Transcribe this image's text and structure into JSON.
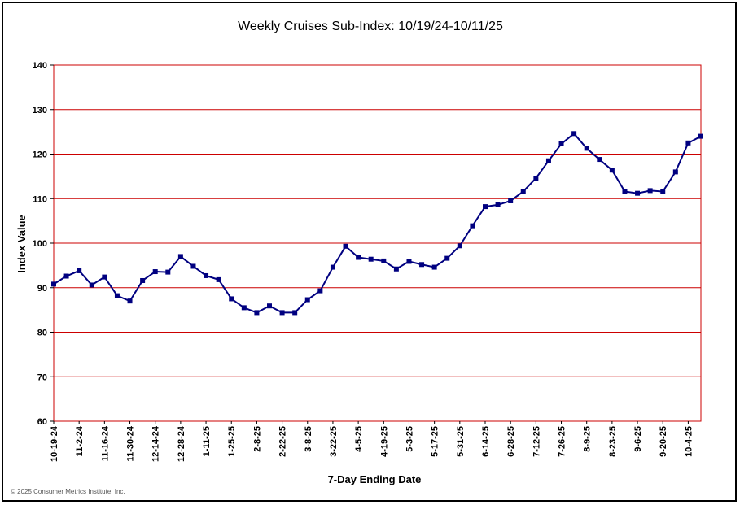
{
  "chart_data": {
    "type": "line",
    "title": "Weekly Cruises Sub-Index: 10/19/24-10/11/25",
    "xlabel": "7-Day Ending Date",
    "ylabel": "Index Value",
    "ylim": [
      60,
      140
    ],
    "yticks": [
      "140",
      "130",
      "120",
      "110",
      "100",
      "90",
      "80",
      "70",
      "60"
    ],
    "ytick_values": [
      140,
      130,
      120,
      110,
      100,
      90,
      80,
      70,
      60
    ],
    "grid": true,
    "legend": "none",
    "xtick_labels": [
      "10-19-24",
      "11-2-24",
      "11-16-24",
      "11-30-24",
      "12-14-24",
      "12-28-24",
      "1-11-25",
      "1-25-25",
      "2-8-25",
      "2-22-25",
      "3-8-25",
      "3-22-25",
      "4-5-25",
      "4-19-25",
      "5-3-25",
      "5-17-25",
      "5-31-25",
      "6-14-25",
      "6-28-25",
      "7-12-25",
      "7-26-25",
      "8-9-25",
      "8-23-25",
      "9-6-25",
      "9-20-25",
      "10-4-25"
    ],
    "x": [
      "10-19-24",
      "10-26-24",
      "11-2-24",
      "11-9-24",
      "11-16-24",
      "11-23-24",
      "11-30-24",
      "12-7-24",
      "12-14-24",
      "12-21-24",
      "12-28-24",
      "1-4-25",
      "1-11-25",
      "1-18-25",
      "1-25-25",
      "2-1-25",
      "2-8-25",
      "2-15-25",
      "2-22-25",
      "3-1-25",
      "3-8-25",
      "3-15-25",
      "3-22-25",
      "3-29-25",
      "4-5-25",
      "4-12-25",
      "4-19-25",
      "4-26-25",
      "5-3-25",
      "5-10-25",
      "5-17-25",
      "5-24-25",
      "5-31-25",
      "6-7-25",
      "6-14-25",
      "6-21-25",
      "6-28-25",
      "7-5-25",
      "7-12-25",
      "7-19-25",
      "7-26-25",
      "8-2-25",
      "8-9-25",
      "8-16-25",
      "8-23-25",
      "8-30-25",
      "9-6-25",
      "9-13-25",
      "9-20-25",
      "9-27-25",
      "10-4-25",
      "10-11-25"
    ],
    "series": [
      {
        "values": [
          90.8,
          92.6,
          93.8,
          90.6,
          92.4,
          88.2,
          87.0,
          91.6,
          93.6,
          93.5,
          97.0,
          94.8,
          92.7,
          91.8,
          87.5,
          85.5,
          84.4,
          85.9,
          84.4,
          84.4,
          87.3,
          89.3,
          94.6,
          99.3,
          96.8,
          96.4,
          96.0,
          94.2,
          95.9,
          95.2,
          94.6,
          96.6,
          99.4,
          103.9,
          108.2,
          108.6,
          109.5,
          111.6,
          114.6,
          118.5,
          122.3,
          124.6,
          121.3,
          118.8,
          116.4,
          111.6,
          111.2,
          111.8,
          111.6,
          116.0,
          122.5,
          124.0
        ]
      }
    ],
    "colors": {
      "line": "#000080",
      "marker": "#000080",
      "grid": "#cc0000",
      "plot_border": "#cc0000"
    }
  },
  "footer": {
    "credit": "© 2025 Consumer Metrics Institute, Inc."
  }
}
